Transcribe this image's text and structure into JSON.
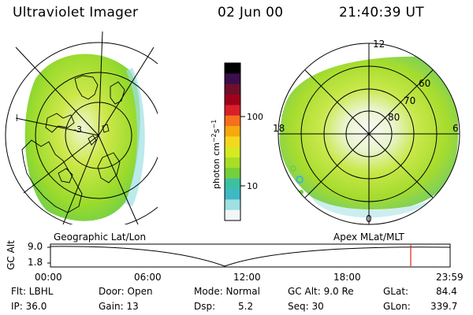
{
  "header": {
    "title": "Ultraviolet Imager",
    "date": "02 Jun 00",
    "time": "21:40:39 UT"
  },
  "colorbar": {
    "unit_main": "photon cm",
    "unit_sup1": "−2",
    "unit_s": "s",
    "unit_sup2": "−1",
    "ticks": [
      "100",
      "10"
    ],
    "colors": [
      "#000000",
      "#3a0f4a",
      "#6e0f2c",
      "#a0001a",
      "#d8202a",
      "#f4701e",
      "#f6a80f",
      "#f3d820",
      "#d5ea20",
      "#a8dd28",
      "#73cf3a",
      "#3cc0a2",
      "#3fb9c6",
      "#9fe0e2",
      "#f2f6f8"
    ]
  },
  "left_map": {
    "label": "Geographic Lat/Lon",
    "center_label": "-3"
  },
  "right_map": {
    "label": "Apex MLat/MLT",
    "mlt_labels": {
      "top": "12",
      "bottom": "0",
      "left": "18",
      "right": "6"
    },
    "lat_labels": [
      "60",
      "70",
      "80"
    ]
  },
  "timeline": {
    "ylabel": "GC Alt",
    "yticks": [
      "9.0",
      "1.8"
    ],
    "xticks": [
      "00:00",
      "06:00",
      "12:00",
      "18:00",
      "23:59"
    ],
    "current_time": "21:40"
  },
  "info": {
    "flt": "Flt: LBHL",
    "ip": "IP: 36.0",
    "door": "Door: Open",
    "gain": "Gain: 13",
    "mode": "Mode: Normal",
    "dsp_label": "Dsp:",
    "dsp_value": "5.2",
    "gcalt": "GC Alt: 9.0 Re",
    "seq": "Seq: 30",
    "glat_label": "GLat:",
    "glat_value": "84.4",
    "glon_label": "GLon:",
    "glon_value": "339.7"
  }
}
